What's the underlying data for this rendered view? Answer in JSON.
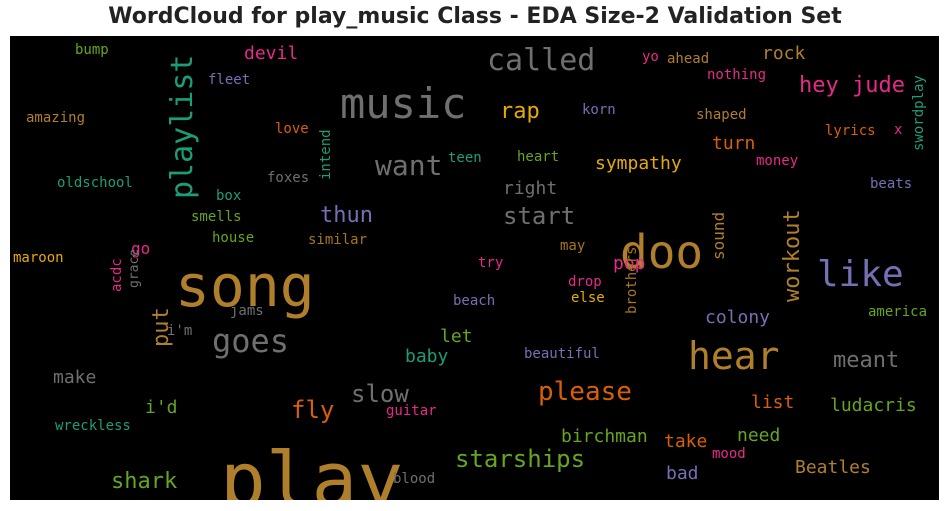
{
  "chart_data": {
    "type": "wordcloud",
    "title": "WordCloud for play_music Class - EDA Size-2 Validation Set",
    "background": "#000000",
    "palette": {
      "orange": "#b07f2b",
      "gray": "#6f6f6f",
      "teal": "#1b9e77",
      "purple": "#7570b3",
      "pink": "#e7298a",
      "green": "#66a61e",
      "yellow": "#e6ab02",
      "red_orange": "#d95f02",
      "brown": "#a6761d"
    },
    "words": [
      {
        "text": "play",
        "color": "orange"
      },
      {
        "text": "song",
        "color": "orange"
      },
      {
        "text": "doo",
        "color": "orange"
      },
      {
        "text": "music",
        "color": "gray"
      },
      {
        "text": "playlist",
        "color": "teal"
      },
      {
        "text": "like",
        "color": "purple"
      },
      {
        "text": "hear",
        "color": "orange"
      },
      {
        "text": "called",
        "color": "gray"
      },
      {
        "text": "goes",
        "color": "gray"
      },
      {
        "text": "want",
        "color": "gray"
      },
      {
        "text": "please",
        "color": "red_orange"
      },
      {
        "text": "starships",
        "color": "green"
      },
      {
        "text": "hey jude",
        "color": "pink"
      },
      {
        "text": "start",
        "color": "gray"
      },
      {
        "text": "workout",
        "color": "orange"
      },
      {
        "text": "shark",
        "color": "green"
      },
      {
        "text": "slow",
        "color": "gray"
      },
      {
        "text": "fly",
        "color": "red_orange"
      },
      {
        "text": "put",
        "color": "orange"
      },
      {
        "text": "meant",
        "color": "gray"
      },
      {
        "text": "rap",
        "color": "yellow"
      },
      {
        "text": "thun",
        "color": "purple"
      },
      {
        "text": "sympathy",
        "color": "yellow"
      },
      {
        "text": "birchman",
        "color": "green"
      },
      {
        "text": "colony",
        "color": "purple"
      },
      {
        "text": "Beatles",
        "color": "orange"
      },
      {
        "text": "ludacris",
        "color": "green"
      },
      {
        "text": "rock",
        "color": "orange"
      },
      {
        "text": "right",
        "color": "gray"
      },
      {
        "text": "turn",
        "color": "red_orange"
      },
      {
        "text": "take",
        "color": "red_orange"
      },
      {
        "text": "need",
        "color": "green"
      },
      {
        "text": "let",
        "color": "green"
      },
      {
        "text": "baby",
        "color": "teal"
      },
      {
        "text": "i'd",
        "color": "green"
      },
      {
        "text": "make",
        "color": "gray"
      },
      {
        "text": "list",
        "color": "red_orange"
      },
      {
        "text": "bad",
        "color": "purple"
      },
      {
        "text": "pop",
        "color": "pink"
      },
      {
        "text": "devil",
        "color": "pink"
      },
      {
        "text": "sound",
        "color": "orange"
      },
      {
        "text": "go",
        "color": "pink"
      },
      {
        "text": "amazing",
        "color": "orange"
      },
      {
        "text": "bump",
        "color": "green"
      },
      {
        "text": "fleet",
        "color": "purple"
      },
      {
        "text": "love",
        "color": "red_orange"
      },
      {
        "text": "intend",
        "color": "teal"
      },
      {
        "text": "teen",
        "color": "teal"
      },
      {
        "text": "heart",
        "color": "green"
      },
      {
        "text": "korn",
        "color": "purple"
      },
      {
        "text": "shaped",
        "color": "orange"
      },
      {
        "text": "yo",
        "color": "pink"
      },
      {
        "text": "ahead",
        "color": "orange"
      },
      {
        "text": "nothing",
        "color": "pink"
      },
      {
        "text": "lyrics",
        "color": "red_orange"
      },
      {
        "text": "x",
        "color": "pink"
      },
      {
        "text": "swordplay",
        "color": "teal"
      },
      {
        "text": "money",
        "color": "pink"
      },
      {
        "text": "beats",
        "color": "purple"
      },
      {
        "text": "oldschool",
        "color": "teal"
      },
      {
        "text": "box",
        "color": "teal"
      },
      {
        "text": "foxes",
        "color": "gray"
      },
      {
        "text": "smells",
        "color": "green"
      },
      {
        "text": "house",
        "color": "green"
      },
      {
        "text": "similar",
        "color": "brown"
      },
      {
        "text": "maroon",
        "color": "yellow"
      },
      {
        "text": "grace",
        "color": "gray"
      },
      {
        "text": "try",
        "color": "pink"
      },
      {
        "text": "may",
        "color": "brown"
      },
      {
        "text": "drop",
        "color": "pink"
      },
      {
        "text": "else",
        "color": "yellow"
      },
      {
        "text": "acdc",
        "color": "pink"
      },
      {
        "text": "i'm",
        "color": "gray"
      },
      {
        "text": "jams",
        "color": "gray"
      },
      {
        "text": "beach",
        "color": "purple"
      },
      {
        "text": "brothers",
        "color": "brown"
      },
      {
        "text": "beautiful",
        "color": "purple"
      },
      {
        "text": "america",
        "color": "green"
      },
      {
        "text": "wreckless",
        "color": "teal"
      },
      {
        "text": "guitar",
        "color": "pink"
      },
      {
        "text": "blood",
        "color": "gray"
      },
      {
        "text": "mood",
        "color": "pink"
      }
    ]
  }
}
